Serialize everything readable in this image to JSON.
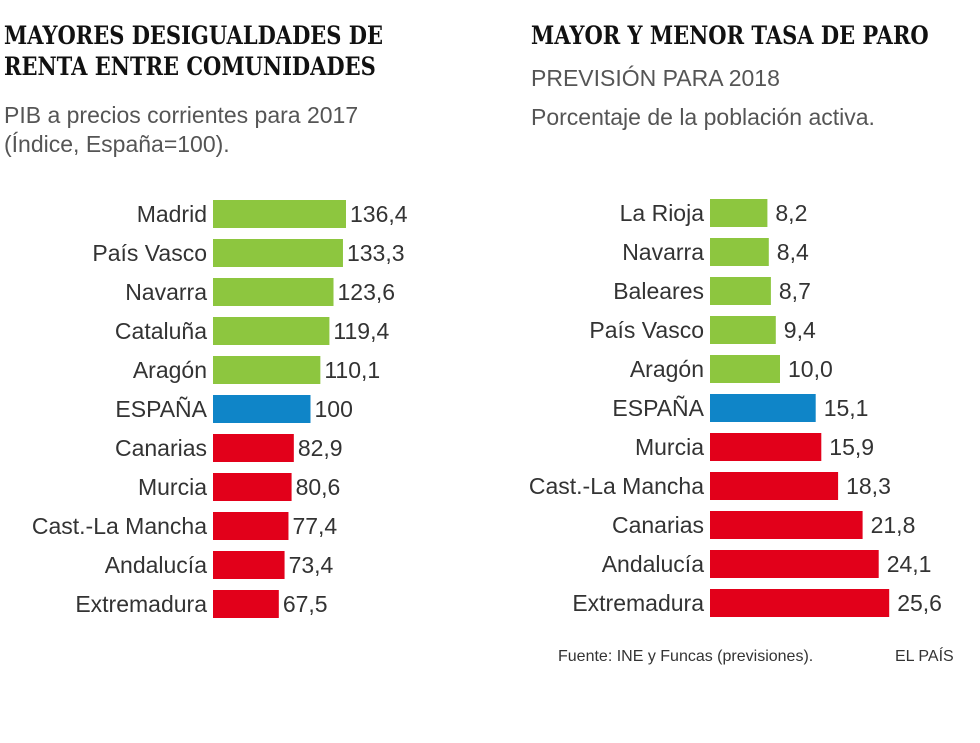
{
  "colors": {
    "green": "#8dc63f",
    "blue": "#0f85c8",
    "red": "#e2001a"
  },
  "chart_data": [
    {
      "type": "bar",
      "orientation": "horizontal",
      "title_lines": [
        "MAYORES DESIGUALDADES DE",
        "RENTA ENTRE COMUNIDADES"
      ],
      "subtitle_lines": [
        "PIB a precios corrientes para 2017",
        "(Índice, España=100)."
      ],
      "categories": [
        "Madrid",
        "País Vasco",
        "Navarra",
        "Cataluña",
        "Aragón",
        "ESPAÑA",
        "Canarias",
        "Murcia",
        "Cast.-La Mancha",
        "Andalucía",
        "Extremadura"
      ],
      "values": [
        136.4,
        133.3,
        123.6,
        119.4,
        110.1,
        100,
        82.9,
        80.6,
        77.4,
        73.4,
        67.5
      ],
      "value_labels": [
        "136,4",
        "133,3",
        "123,6",
        "119,4",
        "110,1",
        "100",
        "82,9",
        "80,6",
        "77,4",
        "73,4",
        "67,5"
      ],
      "color_groups": [
        "green",
        "green",
        "green",
        "green",
        "green",
        "blue",
        "red",
        "red",
        "red",
        "red",
        "red"
      ]
    },
    {
      "type": "bar",
      "orientation": "horizontal",
      "title_lines": [
        "MAYOR Y MENOR TASA DE PARO"
      ],
      "subtitle_lines": [
        "PREVISIÓN PARA 2018",
        "Porcentaje de la población activa."
      ],
      "categories": [
        "La Rioja",
        "Navarra",
        "Baleares",
        "País Vasco",
        "Aragón",
        "ESPAÑA",
        "Murcia",
        "Cast.-La Mancha",
        "Canarias",
        "Andalucía",
        "Extremadura"
      ],
      "values": [
        8.2,
        8.4,
        8.7,
        9.4,
        10.0,
        15.1,
        15.9,
        18.3,
        21.8,
        24.1,
        25.6
      ],
      "value_labels": [
        "8,2",
        "8,4",
        "8,7",
        "9,4",
        "10,0",
        "15,1",
        "15,9",
        "18,3",
        "21,8",
        "24,1",
        "25,6"
      ],
      "color_groups": [
        "green",
        "green",
        "green",
        "green",
        "green",
        "blue",
        "red",
        "red",
        "red",
        "red",
        "red"
      ]
    }
  ],
  "footer": {
    "source": "Fuente: INE y Funcas (previsiones).",
    "credit": "EL PAÍS"
  }
}
